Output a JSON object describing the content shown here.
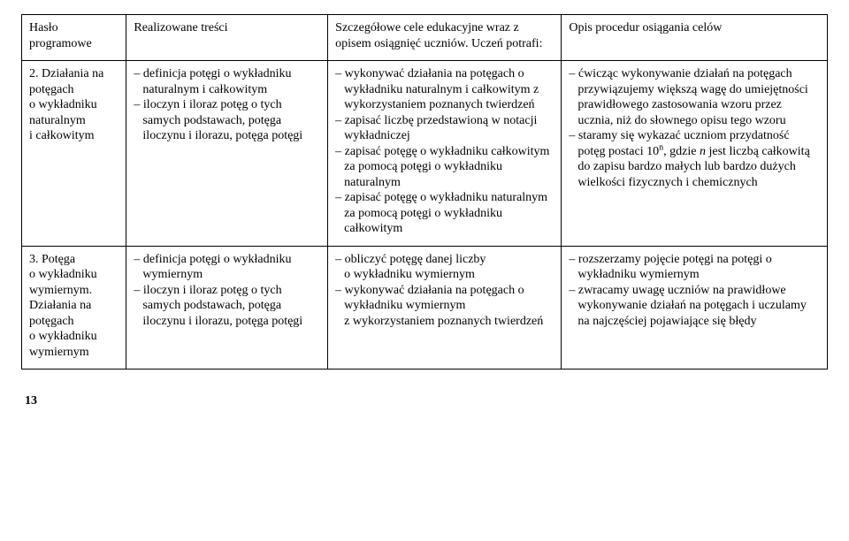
{
  "header": {
    "c1": "Hasło programowe",
    "c2": "Realizowane treści",
    "c3": "Szczegółowe cele edukacyjne wraz z opisem osiągnięć uczniów. Uczeń potrafi:",
    "c4": "Opis procedur osiągania celów"
  },
  "row2": {
    "c1": "2. Działania na potęgach o wykładniku naturalnym i całkowitym",
    "c2": {
      "i1": "– definicja potęgi o wykładniku naturalnym i całkowitym",
      "i2": "– iloczyn i iloraz potęg o tych samych podstawach, potęga iloczynu i ilorazu, potęga potęgi"
    },
    "c3": {
      "i1": "– wykonywać działania na potęgach o wykładniku naturalnym i całkowitym z wykorzystaniem poznanych twierdzeń",
      "i2": "– zapisać liczbę przedstawioną w notacji wykładniczej",
      "i3": "– zapisać potęgę o wykładniku całkowitym za pomocą potęgi o wykładniku naturalnym",
      "i4": "– zapisać potęgę o wykładniku naturalnym za pomocą potęgi o wykładniku całkowitym"
    },
    "c4": {
      "i1": "– ćwicząc wykonywanie działań na potęgach przywiązujemy większą wagę do umiejętności prawidłowego zastosowania wzoru przez ucznia, niż do słownego opisu tego wzoru",
      "i2a": "– staramy się wykazać uczniom przydatność potęg postaci 10",
      "i2b": ", gdzie ",
      "i2c": "n",
      "i2d": " jest liczbą całkowitą do zapisu bardzo małych lub bardzo dużych wielkości fizycznych i chemicznych",
      "sup": "n"
    }
  },
  "row3": {
    "c1": "3. Potęga o wykładniku wymiernym. Działania na potęgach o wykładniku wymiernym",
    "c2": {
      "i1": "– definicja potęgi o wykładniku wymiernym",
      "i2": "– iloczyn i iloraz potęg o tych samych podstawach, potęga iloczynu i ilorazu, potęga potęgi"
    },
    "c3": {
      "i1": "– obliczyć potęgę danej liczby o wykładniku wymiernym",
      "i2": "– wykonywać działania na potęgach o wykładniku wymiernym z wykorzystaniem poznanych twierdzeń"
    },
    "c4": {
      "i1": "– rozszerzamy pojęcie potęgi na potęgi o wykładniku wymiernym",
      "i2": "– zwracamy uwagę uczniów na prawidłowe wykonywanie działań na potęgach i uczulamy na najczęściej pojawiające się błędy"
    }
  },
  "pagenum": "13"
}
